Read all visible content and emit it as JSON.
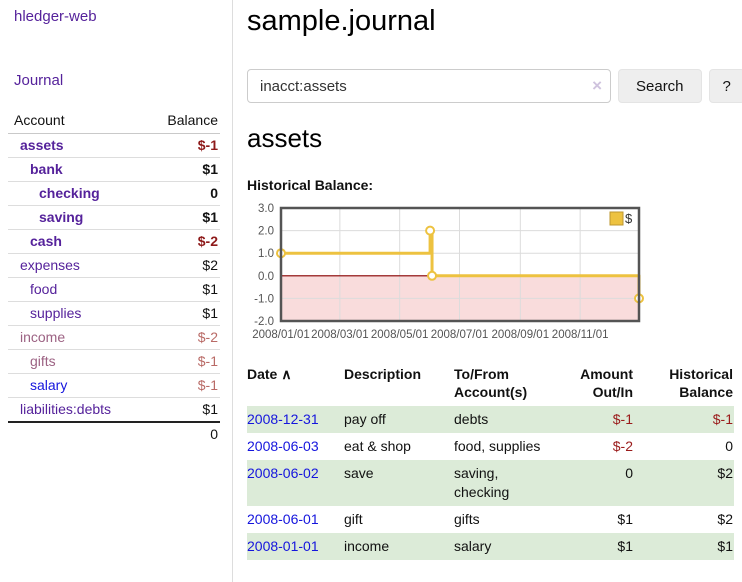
{
  "colors": {
    "link_purple": "#55229b",
    "link_blue": "#1515dd",
    "negative_strong": "#8e1a1a",
    "negative_muted": "#b96a66",
    "stripe_green": "#dcebd8",
    "chart_line_gold": "#edc240"
  },
  "sidebar": {
    "app_title": "hledger-web",
    "journal_link": "Journal",
    "accounts": {
      "headers": {
        "account": "Account",
        "balance": "Balance"
      },
      "rows": [
        {
          "name": "assets",
          "balance": "$-1"
        },
        {
          "name": "bank",
          "balance": "$1"
        },
        {
          "name": "checking",
          "balance": "0"
        },
        {
          "name": "saving",
          "balance": "$1"
        },
        {
          "name": "cash",
          "balance": "$-2"
        },
        {
          "name": "expenses",
          "balance": "$2"
        },
        {
          "name": "food",
          "balance": "$1"
        },
        {
          "name": "supplies",
          "balance": "$1"
        },
        {
          "name": "income",
          "balance": "$-2"
        },
        {
          "name": "gifts",
          "balance": "$-1"
        },
        {
          "name": "salary",
          "balance": "$-1"
        },
        {
          "name": "liabilities:debts",
          "balance": "$1"
        }
      ],
      "total": "0"
    }
  },
  "header": {
    "title": "sample.journal"
  },
  "search": {
    "value": "inacct:assets",
    "clear_icon": "×",
    "button_label": "Search",
    "help_label": "?"
  },
  "main": {
    "account_heading": "assets",
    "chart_title": "Historical Balance:"
  },
  "chart_data": {
    "type": "line",
    "title": "Historical Balance",
    "step": true,
    "legend": "$",
    "legend_position": "top-right",
    "grid": true,
    "ylim": [
      -2,
      3
    ],
    "xlim_dates": [
      "2008-01-01",
      "2008-12-31"
    ],
    "y_ticks": [
      {
        "value": 3,
        "label": "3.0"
      },
      {
        "value": 2,
        "label": "2.0"
      },
      {
        "value": 1,
        "label": "1.0"
      },
      {
        "value": 0,
        "label": "0.0"
      },
      {
        "value": -1,
        "label": "-1.0"
      },
      {
        "value": -2,
        "label": "-2.0"
      }
    ],
    "x_ticks": [
      {
        "date": "2008-01-01",
        "label": "2008/01/01"
      },
      {
        "date": "2008-03-01",
        "label": "2008/03/01"
      },
      {
        "date": "2008-05-01",
        "label": "2008/05/01"
      },
      {
        "date": "2008-07-01",
        "label": "2008/07/01"
      },
      {
        "date": "2008-09-01",
        "label": "2008/09/01"
      },
      {
        "date": "2008-11-01",
        "label": "2008/11/01"
      }
    ],
    "series": [
      {
        "name": "$",
        "color": "#edc240",
        "points": [
          {
            "date": "2008-01-01",
            "value": 1
          },
          {
            "date": "2008-06-01",
            "value": 2
          },
          {
            "date": "2008-06-03",
            "value": 0
          },
          {
            "date": "2008-12-31",
            "value": -1
          }
        ]
      }
    ],
    "negative_region_color": "#f9dcdc",
    "zero_line_color": "#8b0000"
  },
  "register": {
    "headers": {
      "date": "Date",
      "sort_icon": "∧",
      "description": "Description",
      "accounts": "To/From Account(s)",
      "amount": "Amount Out/In",
      "balance": "Historical Balance"
    },
    "rows": [
      {
        "date": "2008-12-31",
        "description": "pay off",
        "accounts": "debts",
        "amount": "$-1",
        "balance": "$-1"
      },
      {
        "date": "2008-06-03",
        "description": "eat & shop",
        "accounts": "food, supplies",
        "amount": "$-2",
        "balance": "0"
      },
      {
        "date": "2008-06-02",
        "description": "save",
        "accounts": "saving, checking",
        "amount": "0",
        "balance": "$2"
      },
      {
        "date": "2008-06-01",
        "description": "gift",
        "accounts": "gifts",
        "amount": "$1",
        "balance": "$2"
      },
      {
        "date": "2008-01-01",
        "description": "income",
        "accounts": "salary",
        "amount": "$1",
        "balance": "$1"
      }
    ]
  }
}
